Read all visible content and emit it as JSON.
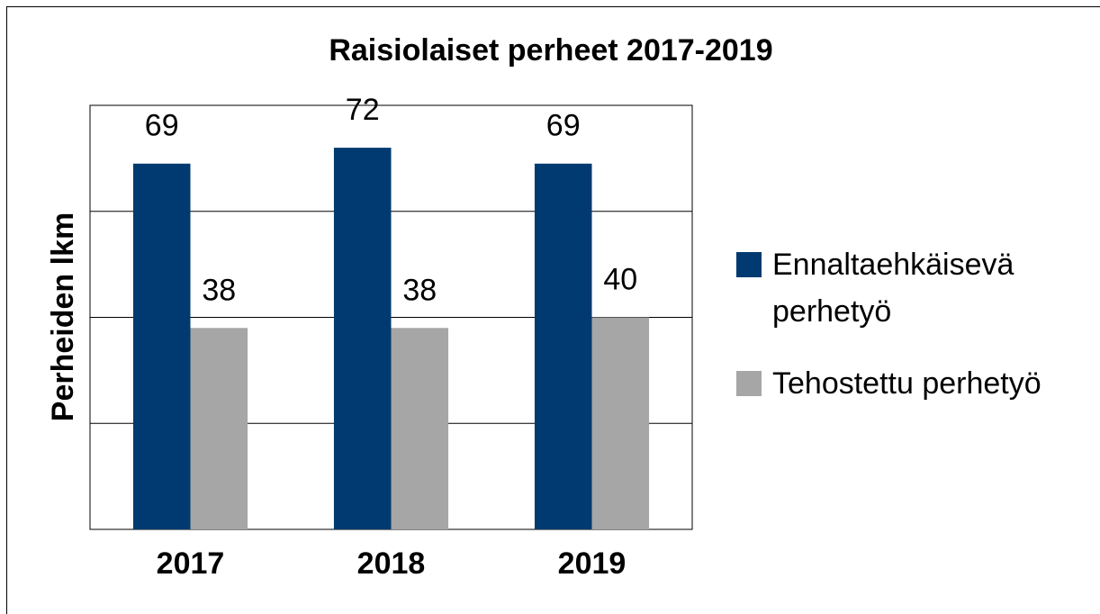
{
  "chart_data": {
    "type": "bar",
    "title": "Raisiolaiset perheet 2017-2019",
    "y_label": "Perheiden lkm",
    "categories": [
      "2017",
      "2018",
      "2019"
    ],
    "series": [
      {
        "name": "Ennaltaehkäisevä perhetyö",
        "color": "#003a70",
        "values": [
          69,
          72,
          69
        ]
      },
      {
        "name": "Tehostettu perhetyö",
        "color": "#a6a6a6",
        "values": [
          38,
          38,
          40
        ]
      }
    ],
    "ylim": [
      0,
      80
    ],
    "yticks": [
      0,
      20,
      40,
      60,
      80
    ],
    "grid": true,
    "legend": "right"
  }
}
